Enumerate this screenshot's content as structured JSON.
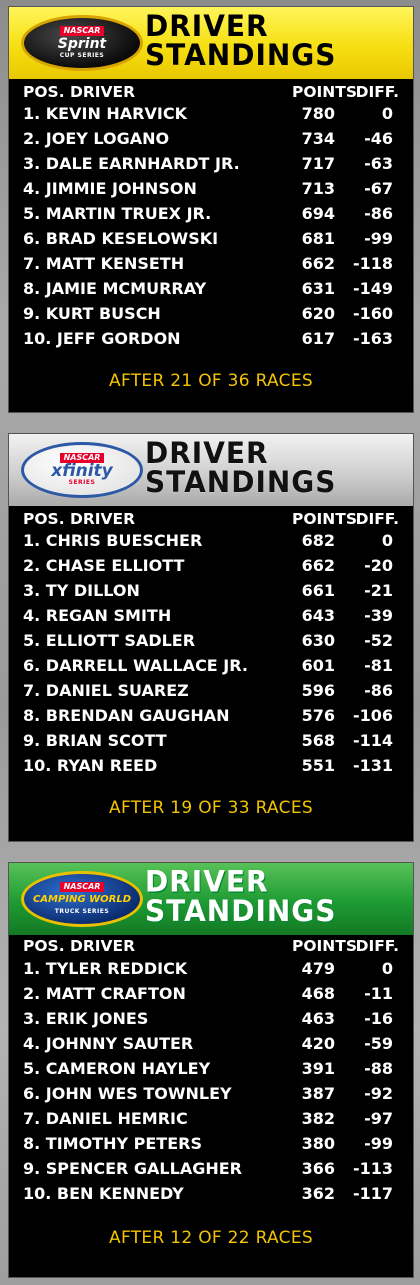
{
  "panels": [
    {
      "logo": {
        "top": "NASCAR",
        "main": "Sprint",
        "sub": "CUP SERIES"
      },
      "title_line1": "DRIVER",
      "title_line2": "STANDINGS",
      "col_pos_driver": "POS. DRIVER",
      "col_points": "POINTS",
      "col_diff": "DIFF.",
      "rows": [
        {
          "driver": "1. KEVIN HARVICK",
          "points": "780",
          "diff": "0"
        },
        {
          "driver": "2. JOEY LOGANO",
          "points": "734",
          "diff": "-46"
        },
        {
          "driver": "3. DALE EARNHARDT JR.",
          "points": "717",
          "diff": "-63"
        },
        {
          "driver": "4. JIMMIE JOHNSON",
          "points": "713",
          "diff": "-67"
        },
        {
          "driver": "5. MARTIN TRUEX JR.",
          "points": "694",
          "diff": "-86"
        },
        {
          "driver": "6. BRAD KESELOWSKI",
          "points": "681",
          "diff": "-99"
        },
        {
          "driver": "7. MATT KENSETH",
          "points": "662",
          "diff": "-118"
        },
        {
          "driver": "8. JAMIE MCMURRAY",
          "points": "631",
          "diff": "-149"
        },
        {
          "driver": "9. KURT BUSCH",
          "points": "620",
          "diff": "-160"
        },
        {
          "driver": "10. JEFF GORDON",
          "points": "617",
          "diff": "-163"
        }
      ],
      "footer": "AFTER 21 OF 36 RACES"
    },
    {
      "logo": {
        "top": "NASCAR",
        "main": "xfinity",
        "sub": "SERIES"
      },
      "title_line1": "DRIVER",
      "title_line2": "STANDINGS",
      "col_pos_driver": "POS. DRIVER",
      "col_points": "POINTS",
      "col_diff": "DIFF.",
      "rows": [
        {
          "driver": "1. CHRIS BUESCHER",
          "points": "682",
          "diff": "0"
        },
        {
          "driver": "2. CHASE ELLIOTT",
          "points": "662",
          "diff": "-20"
        },
        {
          "driver": "3. TY DILLON",
          "points": "661",
          "diff": "-21"
        },
        {
          "driver": "4. REGAN SMITH",
          "points": "643",
          "diff": "-39"
        },
        {
          "driver": "5. ELLIOTT SADLER",
          "points": "630",
          "diff": "-52"
        },
        {
          "driver": "6. DARRELL WALLACE JR.",
          "points": "601",
          "diff": "-81"
        },
        {
          "driver": "7. DANIEL SUAREZ",
          "points": "596",
          "diff": "-86"
        },
        {
          "driver": "8. BRENDAN GAUGHAN",
          "points": "576",
          "diff": "-106"
        },
        {
          "driver": "9. BRIAN SCOTT",
          "points": "568",
          "diff": "-114"
        },
        {
          "driver": "10. RYAN REED",
          "points": "551",
          "diff": "-131"
        }
      ],
      "footer": "AFTER 19 OF 33 RACES"
    },
    {
      "logo": {
        "top": "NASCAR",
        "main": "CAMPING WORLD",
        "sub": "TRUCK SERIES"
      },
      "title_line1": "DRIVER",
      "title_line2": "STANDINGS",
      "col_pos_driver": "POS. DRIVER",
      "col_points": "POINTS",
      "col_diff": "DIFF.",
      "rows": [
        {
          "driver": "1. TYLER REDDICK",
          "points": "479",
          "diff": "0"
        },
        {
          "driver": "2. MATT CRAFTON",
          "points": "468",
          "diff": "-11"
        },
        {
          "driver": "3. ERIK JONES",
          "points": "463",
          "diff": "-16"
        },
        {
          "driver": "4. JOHNNY SAUTER",
          "points": "420",
          "diff": "-59"
        },
        {
          "driver": "5. CAMERON HAYLEY",
          "points": "391",
          "diff": "-88"
        },
        {
          "driver": "6. JOHN WES TOWNLEY",
          "points": "387",
          "diff": "-92"
        },
        {
          "driver": "7. DANIEL HEMRIC",
          "points": "382",
          "diff": "-97"
        },
        {
          "driver": "8. TIMOTHY PETERS",
          "points": "380",
          "diff": "-99"
        },
        {
          "driver": "9. SPENCER GALLAGHER",
          "points": "366",
          "diff": "-113"
        },
        {
          "driver": "10. BEN KENNEDY",
          "points": "362",
          "diff": "-117"
        }
      ],
      "footer": "AFTER 12 OF 22 RACES"
    }
  ]
}
